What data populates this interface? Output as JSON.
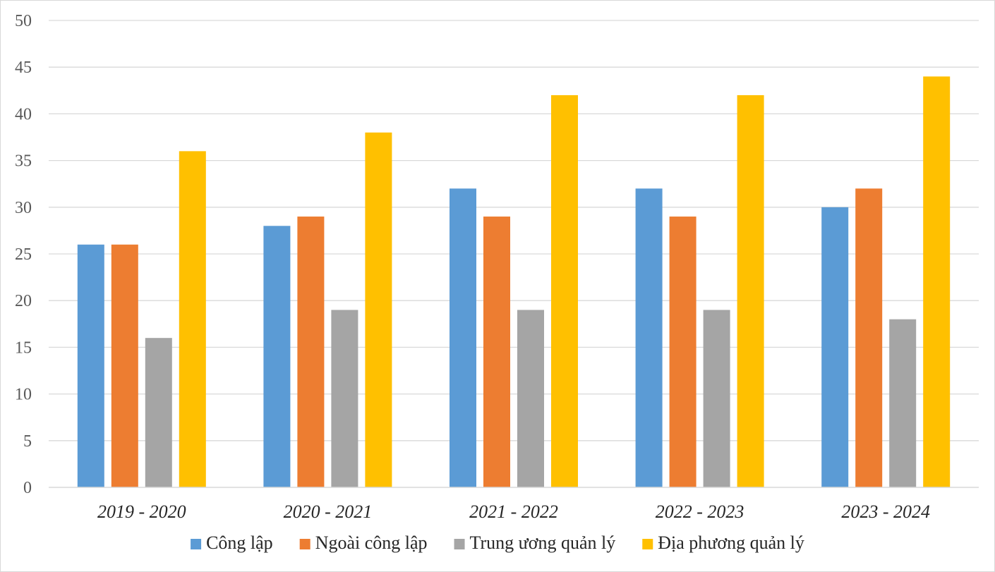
{
  "chart_data": {
    "type": "bar",
    "categories": [
      "2019 - 2020",
      "2020 - 2021",
      "2021 - 2022",
      "2022 - 2023",
      "2023 - 2024"
    ],
    "series": [
      {
        "name": "Công lập",
        "color": "#5b9bd5",
        "values": [
          26,
          28,
          32,
          32,
          30
        ]
      },
      {
        "name": "Ngoài công lập",
        "color": "#ed7d31",
        "values": [
          26,
          29,
          29,
          29,
          32
        ]
      },
      {
        "name": "Trung ương quản lý",
        "color": "#a5a5a5",
        "values": [
          16,
          19,
          19,
          19,
          18
        ]
      },
      {
        "name": "Địa phương quản lý",
        "color": "#ffc000",
        "values": [
          36,
          38,
          42,
          42,
          44
        ]
      }
    ],
    "ylim": [
      0,
      50
    ],
    "yticks": [
      "0",
      "5",
      "10",
      "15",
      "20",
      "25",
      "30",
      "35",
      "40",
      "45",
      "50"
    ],
    "grid": true,
    "legend": "bottom"
  }
}
